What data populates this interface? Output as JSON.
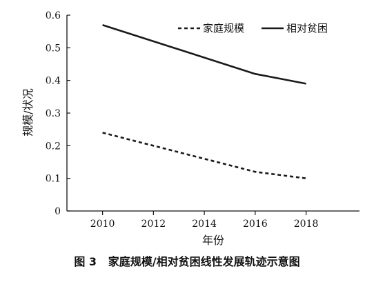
{
  "chart_data": {
    "type": "line",
    "title": "",
    "xlabel": "年份",
    "ylabel": "规模/状况",
    "x": [
      2010,
      2016,
      2018
    ],
    "xticks": [
      2010,
      2012,
      2014,
      2016,
      2018
    ],
    "yticks": [
      "0",
      "0.1",
      "0.2",
      "0.3",
      "0.4",
      "0.5",
      "0.6"
    ],
    "xlim": [
      2008.6,
      2020.1
    ],
    "ylim": [
      0,
      0.6
    ],
    "grid": false,
    "legend_position": "top-right",
    "series": [
      {
        "name": "家庭规模",
        "values": [
          0.24,
          0.12,
          0.1
        ],
        "line_style": "dashed",
        "color": "#1a1a1a"
      },
      {
        "name": "相对贫困",
        "values": [
          0.57,
          0.42,
          0.39
        ],
        "line_style": "solid",
        "color": "#1a1a1a"
      }
    ]
  },
  "caption": {
    "number": "图 3",
    "text": "家庭规模/相对贫困线性发展轨迹示意图"
  }
}
